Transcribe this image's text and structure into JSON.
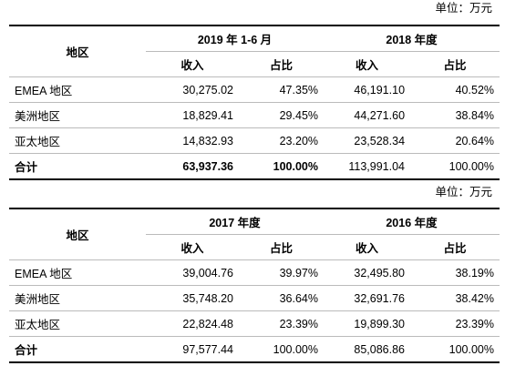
{
  "tables": [
    {
      "unit": "单位：万元",
      "header": {
        "region": "地区",
        "periods": [
          "2019 年 1-6 月",
          "2018 年度"
        ],
        "columns": [
          "收入",
          "占比",
          "收入",
          "占比"
        ]
      },
      "rows": [
        [
          "EMEA 地区",
          "30,275.02",
          "47.35%",
          "46,191.10",
          "40.52%"
        ],
        [
          "美洲地区",
          "18,829.41",
          "29.45%",
          "44,271.60",
          "38.84%"
        ],
        [
          "亚太地区",
          "14,832.93",
          "23.20%",
          "23,528.34",
          "20.64%"
        ],
        [
          "合计",
          "63,937.36",
          "100.00%",
          "113,991.04",
          "100.00%"
        ]
      ]
    },
    {
      "unit": "单位：万元",
      "header": {
        "region": "地区",
        "periods": [
          "2017 年度",
          "2016 年度"
        ],
        "columns": [
          "收入",
          "占比",
          "收入",
          "占比"
        ]
      },
      "rows": [
        [
          "EMEA 地区",
          "39,004.76",
          "39.97%",
          "32,495.80",
          "38.19%"
        ],
        [
          "美洲地区",
          "35,748.20",
          "36.64%",
          "32,691.76",
          "38.42%"
        ],
        [
          "亚太地区",
          "22,824.48",
          "23.39%",
          "19,899.30",
          "23.39%"
        ],
        [
          "合计",
          "97,577.44",
          "100.00%",
          "85,086.86",
          "100.00%"
        ]
      ]
    }
  ]
}
